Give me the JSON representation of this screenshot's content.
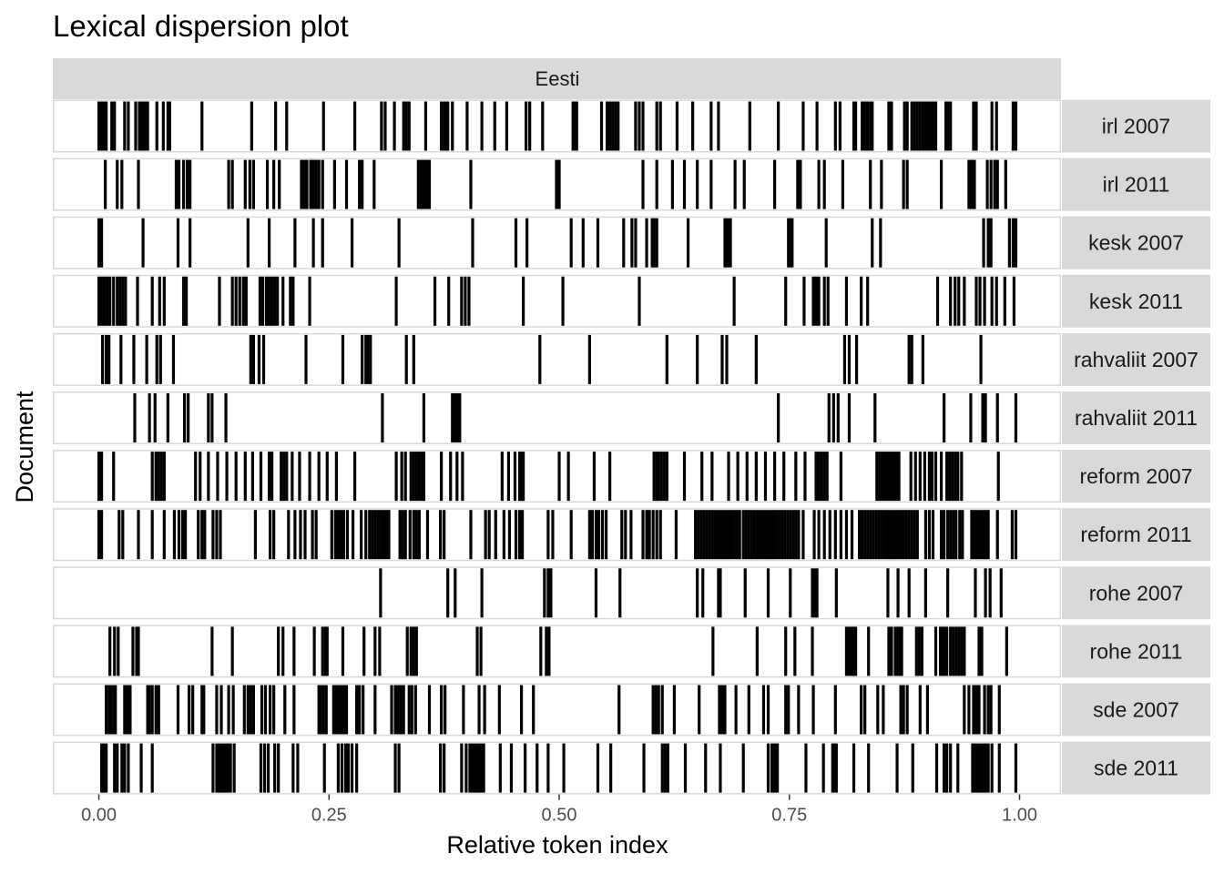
{
  "chart_data": {
    "type": "lexical-dispersion",
    "title": "Lexical dispersion plot",
    "facet_label": "Eesti",
    "xlabel": "Relative token index",
    "ylabel": "Document",
    "xlim": [
      -0.05,
      1.045
    ],
    "x_ticks": [
      0,
      0.25,
      0.5,
      0.75,
      1
    ],
    "x_tick_labels": [
      "0.00",
      "0.25",
      "0.50",
      "0.75",
      "1.00"
    ],
    "colors": {
      "strip_bg": "#d9d9d9",
      "panel_border": "#d9d9d9",
      "mark": "#000000"
    },
    "documents": [
      {
        "name": "irl 2007",
        "positions": [
          0.0,
          0.003,
          0.006,
          0.008,
          0.014,
          0.017,
          0.028,
          0.032,
          0.04,
          0.044,
          0.047,
          0.05,
          0.053,
          0.063,
          0.07,
          0.075,
          0.077,
          0.112,
          0.166,
          0.192,
          0.204,
          0.244,
          0.278,
          0.307,
          0.311,
          0.321,
          0.331,
          0.334,
          0.337,
          0.355,
          0.372,
          0.375,
          0.377,
          0.379,
          0.384,
          0.4,
          0.416,
          0.43,
          0.443,
          0.464,
          0.468,
          0.482,
          0.515,
          0.517,
          0.519,
          0.546,
          0.552,
          0.555,
          0.558,
          0.561,
          0.564,
          0.583,
          0.587,
          0.591,
          0.606,
          0.61,
          0.628,
          0.645,
          0.665,
          0.673,
          0.707,
          0.738,
          0.765,
          0.78,
          0.8,
          0.805,
          0.82,
          0.822,
          0.829,
          0.831,
          0.833,
          0.835,
          0.838,
          0.84,
          0.858,
          0.861,
          0.875,
          0.878,
          0.883,
          0.886,
          0.889,
          0.892,
          0.895,
          0.897,
          0.9,
          0.903,
          0.906,
          0.909,
          0.92,
          0.922,
          0.925,
          0.95,
          0.953,
          0.97,
          0.975,
          0.993,
          0.996
        ]
      },
      {
        "name": "irl 2011",
        "positions": [
          0.007,
          0.02,
          0.025,
          0.043,
          0.084,
          0.087,
          0.092,
          0.096,
          0.099,
          0.141,
          0.145,
          0.159,
          0.164,
          0.168,
          0.183,
          0.19,
          0.196,
          0.22,
          0.223,
          0.226,
          0.23,
          0.233,
          0.236,
          0.239,
          0.243,
          0.256,
          0.269,
          0.283,
          0.286,
          0.299,
          0.347,
          0.35,
          0.353,
          0.356,
          0.359,
          0.404,
          0.497,
          0.5,
          0.591,
          0.606,
          0.623,
          0.636,
          0.65,
          0.665,
          0.691,
          0.701,
          0.734,
          0.759,
          0.762,
          0.782,
          0.788,
          0.808,
          0.838,
          0.85,
          0.874,
          0.878,
          0.915,
          0.945,
          0.948,
          0.951,
          0.965,
          0.969,
          0.973,
          0.976,
          0.985
        ]
      },
      {
        "name": "kesk 2007",
        "positions": [
          0.0,
          0.003,
          0.048,
          0.086,
          0.099,
          0.162,
          0.185,
          0.213,
          0.233,
          0.243,
          0.275,
          0.326,
          0.406,
          0.453,
          0.465,
          0.513,
          0.526,
          0.542,
          0.57,
          0.579,
          0.583,
          0.595,
          0.601,
          0.603,
          0.606,
          0.64,
          0.68,
          0.683,
          0.686,
          0.749,
          0.751,
          0.753,
          0.79,
          0.84,
          0.849,
          0.961,
          0.966,
          0.969,
          0.989,
          0.993,
          0.996
        ]
      },
      {
        "name": "kesk 2011",
        "positions": [
          0.0,
          0.003,
          0.006,
          0.009,
          0.012,
          0.016,
          0.02,
          0.023,
          0.026,
          0.029,
          0.042,
          0.058,
          0.066,
          0.071,
          0.092,
          0.095,
          0.131,
          0.145,
          0.149,
          0.153,
          0.157,
          0.16,
          0.175,
          0.178,
          0.182,
          0.185,
          0.188,
          0.191,
          0.194,
          0.2,
          0.208,
          0.211,
          0.229,
          0.323,
          0.365,
          0.38,
          0.394,
          0.398,
          0.402,
          0.461,
          0.504,
          0.587,
          0.69,
          0.746,
          0.766,
          0.776,
          0.779,
          0.782,
          0.788,
          0.792,
          0.812,
          0.828,
          0.835,
          0.911,
          0.925,
          0.93,
          0.934,
          0.94,
          0.953,
          0.957,
          0.962,
          0.97,
          0.975,
          0.984,
          0.994
        ]
      },
      {
        "name": "rahvaliit 2007",
        "positions": [
          0.004,
          0.008,
          0.011,
          0.024,
          0.038,
          0.052,
          0.063,
          0.067,
          0.081,
          0.165,
          0.168,
          0.174,
          0.179,
          0.225,
          0.265,
          0.286,
          0.29,
          0.292,
          0.295,
          0.334,
          0.342,
          0.479,
          0.533,
          0.617,
          0.65,
          0.677,
          0.682,
          0.714,
          0.81,
          0.815,
          0.823,
          0.88,
          0.883,
          0.895,
          0.958
        ]
      },
      {
        "name": "rahvaliit 2011",
        "positions": [
          0.039,
          0.055,
          0.061,
          0.075,
          0.093,
          0.097,
          0.119,
          0.123,
          0.138,
          0.308,
          0.353,
          0.384,
          0.386,
          0.388,
          0.39,
          0.392,
          0.738,
          0.793,
          0.798,
          0.803,
          0.815,
          0.843,
          0.918,
          0.947,
          0.96,
          0.963,
          0.976,
          0.996
        ]
      },
      {
        "name": "reform 2007",
        "positions": [
          0.0,
          0.003,
          0.016,
          0.058,
          0.062,
          0.065,
          0.068,
          0.071,
          0.105,
          0.11,
          0.119,
          0.129,
          0.139,
          0.149,
          0.159,
          0.167,
          0.176,
          0.185,
          0.188,
          0.198,
          0.201,
          0.204,
          0.21,
          0.218,
          0.229,
          0.239,
          0.248,
          0.258,
          0.278,
          0.323,
          0.329,
          0.333,
          0.339,
          0.342,
          0.345,
          0.348,
          0.351,
          0.353,
          0.372,
          0.382,
          0.389,
          0.395,
          0.438,
          0.445,
          0.452,
          0.457,
          0.459,
          0.461,
          0.5,
          0.51,
          0.538,
          0.555,
          0.603,
          0.606,
          0.608,
          0.611,
          0.614,
          0.617,
          0.636,
          0.655,
          0.666,
          0.684,
          0.694,
          0.704,
          0.714,
          0.724,
          0.734,
          0.744,
          0.757,
          0.767,
          0.779,
          0.782,
          0.785,
          0.788,
          0.791,
          0.806,
          0.845,
          0.848,
          0.851,
          0.854,
          0.857,
          0.86,
          0.863,
          0.866,
          0.869,
          0.882,
          0.887,
          0.892,
          0.897,
          0.902,
          0.905,
          0.909,
          0.915,
          0.921,
          0.924,
          0.927,
          0.93,
          0.933,
          0.937,
          0.977
        ]
      },
      {
        "name": "reform 2011",
        "positions": [
          0.0,
          0.003,
          0.022,
          0.026,
          0.043,
          0.058,
          0.071,
          0.082,
          0.087,
          0.091,
          0.094,
          0.108,
          0.112,
          0.115,
          0.124,
          0.128,
          0.132,
          0.17,
          0.186,
          0.19,
          0.206,
          0.213,
          0.219,
          0.224,
          0.232,
          0.236,
          0.253,
          0.257,
          0.26,
          0.263,
          0.266,
          0.27,
          0.276,
          0.285,
          0.29,
          0.294,
          0.297,
          0.3,
          0.303,
          0.306,
          0.309,
          0.312,
          0.315,
          0.327,
          0.33,
          0.333,
          0.338,
          0.342,
          0.345,
          0.348,
          0.357,
          0.371,
          0.375,
          0.404,
          0.42,
          0.424,
          0.431,
          0.44,
          0.446,
          0.453,
          0.457,
          0.46,
          0.488,
          0.493,
          0.513,
          0.533,
          0.536,
          0.54,
          0.543,
          0.547,
          0.551,
          0.568,
          0.572,
          0.578,
          0.591,
          0.595,
          0.598,
          0.602,
          0.606,
          0.61,
          0.627,
          0.648,
          0.651,
          0.654,
          0.657,
          0.66,
          0.663,
          0.666,
          0.669,
          0.672,
          0.675,
          0.678,
          0.681,
          0.684,
          0.687,
          0.69,
          0.693,
          0.696,
          0.7,
          0.703,
          0.706,
          0.709,
          0.712,
          0.715,
          0.718,
          0.721,
          0.724,
          0.727,
          0.73,
          0.733,
          0.736,
          0.739,
          0.742,
          0.745,
          0.748,
          0.751,
          0.754,
          0.757,
          0.76,
          0.765,
          0.777,
          0.782,
          0.788,
          0.794,
          0.8,
          0.806,
          0.812,
          0.818,
          0.826,
          0.829,
          0.832,
          0.835,
          0.838,
          0.841,
          0.844,
          0.847,
          0.85,
          0.853,
          0.856,
          0.859,
          0.862,
          0.865,
          0.868,
          0.871,
          0.874,
          0.877,
          0.88,
          0.883,
          0.886,
          0.889,
          0.898,
          0.902,
          0.906,
          0.915,
          0.918,
          0.922,
          0.925,
          0.928,
          0.931,
          0.935,
          0.938,
          0.948,
          0.951,
          0.954,
          0.957,
          0.96,
          0.963,
          0.966,
          0.976,
          0.992,
          0.996
        ]
      },
      {
        "name": "rohe 2007",
        "positions": [
          0.306,
          0.379,
          0.387,
          0.416,
          0.484,
          0.488,
          0.491,
          0.54,
          0.566,
          0.65,
          0.656,
          0.673,
          0.675,
          0.702,
          0.727,
          0.751,
          0.775,
          0.778,
          0.78,
          0.801,
          0.857,
          0.868,
          0.88,
          0.898,
          0.922,
          0.952,
          0.963,
          0.968,
          0.98
        ]
      },
      {
        "name": "rohe 2011",
        "positions": [
          0.012,
          0.017,
          0.021,
          0.037,
          0.041,
          0.043,
          0.123,
          0.145,
          0.195,
          0.2,
          0.212,
          0.234,
          0.243,
          0.246,
          0.248,
          0.265,
          0.288,
          0.3,
          0.305,
          0.335,
          0.339,
          0.342,
          0.345,
          0.411,
          0.415,
          0.48,
          0.486,
          0.489,
          0.667,
          0.715,
          0.746,
          0.756,
          0.775,
          0.812,
          0.815,
          0.818,
          0.82,
          0.822,
          0.836,
          0.858,
          0.861,
          0.865,
          0.868,
          0.87,
          0.872,
          0.888,
          0.891,
          0.894,
          0.909,
          0.914,
          0.916,
          0.918,
          0.921,
          0.925,
          0.928,
          0.931,
          0.934,
          0.937,
          0.94,
          0.956,
          0.959,
          0.986
        ]
      },
      {
        "name": "sde 2007",
        "positions": [
          0.008,
          0.011,
          0.013,
          0.016,
          0.018,
          0.028,
          0.031,
          0.034,
          0.053,
          0.055,
          0.058,
          0.062,
          0.065,
          0.086,
          0.098,
          0.102,
          0.112,
          0.114,
          0.128,
          0.133,
          0.141,
          0.146,
          0.158,
          0.162,
          0.165,
          0.168,
          0.177,
          0.181,
          0.186,
          0.19,
          0.202,
          0.212,
          0.239,
          0.241,
          0.244,
          0.247,
          0.255,
          0.258,
          0.26,
          0.263,
          0.266,
          0.269,
          0.28,
          0.283,
          0.287,
          0.3,
          0.318,
          0.322,
          0.325,
          0.328,
          0.331,
          0.337,
          0.34,
          0.344,
          0.359,
          0.372,
          0.376,
          0.396,
          0.413,
          0.419,
          0.435,
          0.459,
          0.472,
          0.565,
          0.602,
          0.605,
          0.608,
          0.612,
          0.625,
          0.652,
          0.674,
          0.676,
          0.678,
          0.68,
          0.692,
          0.706,
          0.722,
          0.727,
          0.746,
          0.749,
          0.76,
          0.776,
          0.8,
          0.828,
          0.832,
          0.846,
          0.852,
          0.871,
          0.874,
          0.878,
          0.892,
          0.9,
          0.94,
          0.945,
          0.95,
          0.953,
          0.956,
          0.962,
          0.966,
          0.969,
          0.978
        ]
      },
      {
        "name": "sde 2011",
        "positions": [
          0.003,
          0.005,
          0.008,
          0.017,
          0.02,
          0.025,
          0.028,
          0.032,
          0.046,
          0.058,
          0.124,
          0.128,
          0.131,
          0.134,
          0.137,
          0.14,
          0.143,
          0.147,
          0.176,
          0.18,
          0.184,
          0.191,
          0.195,
          0.211,
          0.216,
          0.245,
          0.26,
          0.264,
          0.268,
          0.271,
          0.275,
          0.28,
          0.322,
          0.326,
          0.371,
          0.375,
          0.394,
          0.399,
          0.403,
          0.406,
          0.409,
          0.412,
          0.415,
          0.418,
          0.436,
          0.448,
          0.463,
          0.476,
          0.488,
          0.505,
          0.542,
          0.556,
          0.592,
          0.612,
          0.615,
          0.618,
          0.637,
          0.659,
          0.675,
          0.7,
          0.727,
          0.731,
          0.734,
          0.737,
          0.768,
          0.787,
          0.797,
          0.799,
          0.801,
          0.82,
          0.836,
          0.867,
          0.884,
          0.91,
          0.918,
          0.921,
          0.925,
          0.933,
          0.949,
          0.951,
          0.954,
          0.957,
          0.96,
          0.963,
          0.966,
          0.97,
          0.978,
          0.996
        ]
      }
    ]
  }
}
